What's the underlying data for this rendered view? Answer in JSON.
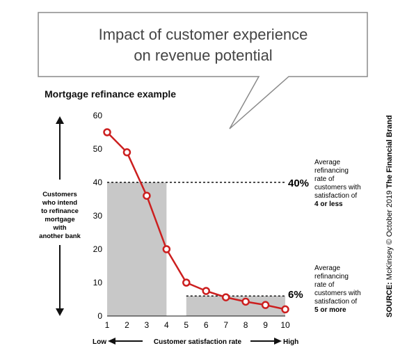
{
  "callout": {
    "title_line1": "Impact of customer experience",
    "title_line2": "on revenue potential"
  },
  "subtitle": "Mortgage refinance example",
  "y_axis_label": [
    "Customers",
    "who intend",
    "to refinance",
    "mortgage",
    "with",
    "another bank"
  ],
  "x_axis_label": {
    "low": "Low",
    "middle": "Customer satisfaction rate",
    "high": "High"
  },
  "annotation_low": {
    "value": "40%",
    "lines": [
      "Average",
      "refinancing",
      "rate of",
      "customers with",
      "satisfaction of"
    ],
    "bold": "4 or less"
  },
  "annotation_high": {
    "value": "6%",
    "lines": [
      "Average",
      "refinancing",
      "rate of",
      "customers with",
      "satisfaction of"
    ],
    "bold": "5 or more"
  },
  "source": {
    "label": "SOURCE:",
    "org": "McKinsey",
    "copyright": "©",
    "date": "October 2019",
    "brand": "The Financial Brand"
  },
  "chart_data": {
    "type": "line",
    "title": "",
    "x": [
      1,
      2,
      3,
      4,
      5,
      6,
      7,
      8,
      9,
      10
    ],
    "series": [
      {
        "values": [
          55,
          49,
          36,
          20,
          10,
          7.5,
          5.6,
          4.3,
          3.3,
          2
        ]
      }
    ],
    "xlim": [
      1,
      10
    ],
    "ylim": [
      0,
      60
    ],
    "yticks": [
      0,
      10,
      20,
      30,
      40,
      50,
      60
    ],
    "grid": false,
    "averages": [
      {
        "range": [
          1,
          4
        ],
        "value": 40,
        "label": "40%"
      },
      {
        "range": [
          5,
          10
        ],
        "value": 6,
        "label": "6%"
      }
    ],
    "colors": {
      "line": "#cc1f1f",
      "shade": "#c8c8c8",
      "marker_fill": "#ffffff"
    }
  }
}
